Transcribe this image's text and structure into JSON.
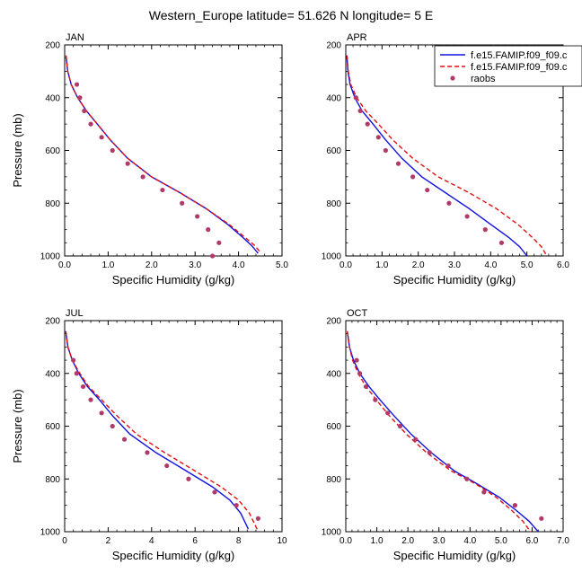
{
  "title": "Western_Europe  latitude= 51.626 N longitude= 5 E",
  "colors": {
    "model1": "#1010e0",
    "model2": "#e01010",
    "raobs": "#b03a6a"
  },
  "legend": {
    "placement": "top-right of APR panel",
    "entries": [
      "f.e15.FAMIP.f09_f09.c",
      "f.e15.FAMIP.f09_f09.c",
      "raobs"
    ]
  },
  "chart_data": [
    {
      "type": "line",
      "title": "JAN",
      "xlabel": "Specific Humidity (g/kg)",
      "ylabel": "Pressure (mb)",
      "xlim": [
        0,
        5
      ],
      "ylim": [
        1000,
        200
      ],
      "xticks": [
        "0.0",
        "1.0",
        "2.0",
        "3.0",
        "4.0",
        "5.0"
      ],
      "yticks": [
        "200",
        "400",
        "600",
        "800",
        "1000"
      ],
      "series": [
        {
          "name": "f.e15.FAMIP.f09_f09.c",
          "style": "solid",
          "x": [
            0.03,
            0.07,
            0.15,
            0.3,
            0.5,
            0.75,
            1.05,
            1.45,
            2.0,
            2.65,
            3.25,
            3.75,
            4.1,
            4.3,
            4.45
          ],
          "y": [
            240,
            300,
            350,
            400,
            450,
            500,
            560,
            630,
            700,
            760,
            820,
            880,
            930,
            960,
            990
          ]
        },
        {
          "name": "f.e15.FAMIP.f09_f09.c",
          "style": "dashed",
          "x": [
            0.03,
            0.07,
            0.15,
            0.3,
            0.5,
            0.75,
            1.05,
            1.45,
            2.0,
            2.65,
            3.25,
            3.78,
            4.15,
            4.37,
            4.52
          ],
          "y": [
            240,
            300,
            350,
            400,
            450,
            500,
            560,
            630,
            700,
            760,
            820,
            880,
            930,
            960,
            990
          ]
        },
        {
          "name": "raobs",
          "style": "markers",
          "x": [
            0.28,
            0.35,
            0.45,
            0.6,
            0.85,
            1.1,
            1.45,
            1.8,
            2.25,
            2.7,
            3.05,
            3.3,
            3.55,
            3.4
          ],
          "y": [
            350,
            400,
            450,
            500,
            550,
            600,
            650,
            700,
            750,
            800,
            850,
            900,
            950,
            1000
          ]
        }
      ]
    },
    {
      "type": "line",
      "title": "APR",
      "xlabel": "Specific Humidity (g/kg)",
      "ylabel": "",
      "xlim": [
        0,
        6
      ],
      "ylim": [
        1000,
        200
      ],
      "xticks": [
        "0.0",
        "1.0",
        "2.0",
        "3.0",
        "4.0",
        "5.0",
        "6.0"
      ],
      "yticks": [
        "200",
        "400",
        "600",
        "800",
        "1000"
      ],
      "series": [
        {
          "name": "f.e15.FAMIP.f09_f09.c",
          "style": "solid",
          "x": [
            0.03,
            0.06,
            0.12,
            0.25,
            0.45,
            0.75,
            1.1,
            1.55,
            2.1,
            2.75,
            3.4,
            4.0,
            4.5,
            4.8,
            5.0
          ],
          "y": [
            240,
            300,
            350,
            400,
            450,
            500,
            560,
            630,
            700,
            760,
            820,
            880,
            930,
            965,
            1000
          ]
        },
        {
          "name": "f.e15.FAMIP.f09_f09.c",
          "style": "dashed",
          "x": [
            0.03,
            0.07,
            0.14,
            0.3,
            0.55,
            0.9,
            1.3,
            1.85,
            2.55,
            3.4,
            4.15,
            4.75,
            5.15,
            5.4,
            5.55
          ],
          "y": [
            240,
            300,
            350,
            400,
            450,
            500,
            560,
            630,
            700,
            760,
            820,
            880,
            930,
            965,
            1000
          ]
        },
        {
          "name": "raobs",
          "style": "markers",
          "x": [
            0.28,
            0.4,
            0.6,
            0.9,
            1.1,
            1.45,
            1.85,
            2.25,
            2.85,
            3.35,
            3.85,
            4.3
          ],
          "y": [
            400,
            450,
            500,
            550,
            600,
            650,
            700,
            750,
            800,
            850,
            900,
            950
          ]
        }
      ]
    },
    {
      "type": "line",
      "title": "JUL",
      "xlabel": "Specific Humidity (g/kg)",
      "ylabel": "Pressure (mb)",
      "xlim": [
        0,
        10
      ],
      "ylim": [
        1000,
        200
      ],
      "xticks": [
        "0",
        "2",
        "4",
        "6",
        "8",
        "10"
      ],
      "yticks": [
        "200",
        "400",
        "600",
        "800",
        "1000"
      ],
      "series": [
        {
          "name": "f.e15.FAMIP.f09_f09.c",
          "style": "solid",
          "x": [
            0.05,
            0.15,
            0.35,
            0.65,
            1.05,
            1.6,
            2.2,
            3.0,
            4.2,
            5.6,
            6.8,
            7.6,
            8.1,
            8.45
          ],
          "y": [
            240,
            300,
            350,
            400,
            450,
            500,
            560,
            630,
            700,
            770,
            830,
            880,
            930,
            990
          ]
        },
        {
          "name": "f.e15.FAMIP.f09_f09.c",
          "style": "dashed",
          "x": [
            0.05,
            0.15,
            0.35,
            0.7,
            1.1,
            1.7,
            2.4,
            3.3,
            4.6,
            6.0,
            7.2,
            8.0,
            8.5,
            8.85
          ],
          "y": [
            240,
            300,
            350,
            400,
            450,
            500,
            560,
            630,
            700,
            770,
            830,
            880,
            930,
            990
          ]
        },
        {
          "name": "raobs",
          "style": "markers",
          "x": [
            0.4,
            0.55,
            0.85,
            1.2,
            1.7,
            2.2,
            2.75,
            3.8,
            4.7,
            5.7,
            6.9,
            7.9,
            8.9
          ],
          "y": [
            350,
            400,
            450,
            500,
            550,
            600,
            650,
            700,
            750,
            800,
            850,
            900,
            950
          ]
        }
      ]
    },
    {
      "type": "line",
      "title": "OCT",
      "xlabel": "Specific Humidity (g/kg)",
      "ylabel": "",
      "xlim": [
        0,
        7
      ],
      "ylim": [
        1000,
        200
      ],
      "xticks": [
        "0.0",
        "1.0",
        "2.0",
        "3.0",
        "4.0",
        "5.0",
        "6.0",
        "7.0"
      ],
      "yticks": [
        "200",
        "400",
        "600",
        "800",
        "1000"
      ],
      "series": [
        {
          "name": "f.e15.FAMIP.f09_f09.c",
          "style": "solid",
          "x": [
            0.05,
            0.12,
            0.25,
            0.45,
            0.75,
            1.1,
            1.55,
            2.1,
            2.75,
            3.5,
            4.25,
            4.95,
            5.5,
            5.9,
            6.2
          ],
          "y": [
            240,
            300,
            350,
            400,
            450,
            500,
            560,
            630,
            700,
            770,
            820,
            870,
            920,
            960,
            1000
          ]
        },
        {
          "name": "f.e15.FAMIP.f09_f09.c",
          "style": "dashed",
          "x": [
            0.05,
            0.12,
            0.22,
            0.4,
            0.65,
            0.98,
            1.4,
            1.95,
            2.6,
            3.4,
            4.2,
            4.85,
            5.35,
            5.7,
            5.95
          ],
          "y": [
            240,
            300,
            350,
            400,
            450,
            500,
            560,
            630,
            700,
            770,
            820,
            870,
            920,
            960,
            1000
          ]
        },
        {
          "name": "raobs",
          "style": "markers",
          "x": [
            0.35,
            0.45,
            0.65,
            0.95,
            1.35,
            1.75,
            2.25,
            2.7,
            3.3,
            3.9,
            4.45,
            5.45,
            6.3
          ],
          "y": [
            350,
            400,
            450,
            500,
            550,
            600,
            650,
            700,
            750,
            800,
            850,
            900,
            950
          ]
        }
      ]
    }
  ]
}
